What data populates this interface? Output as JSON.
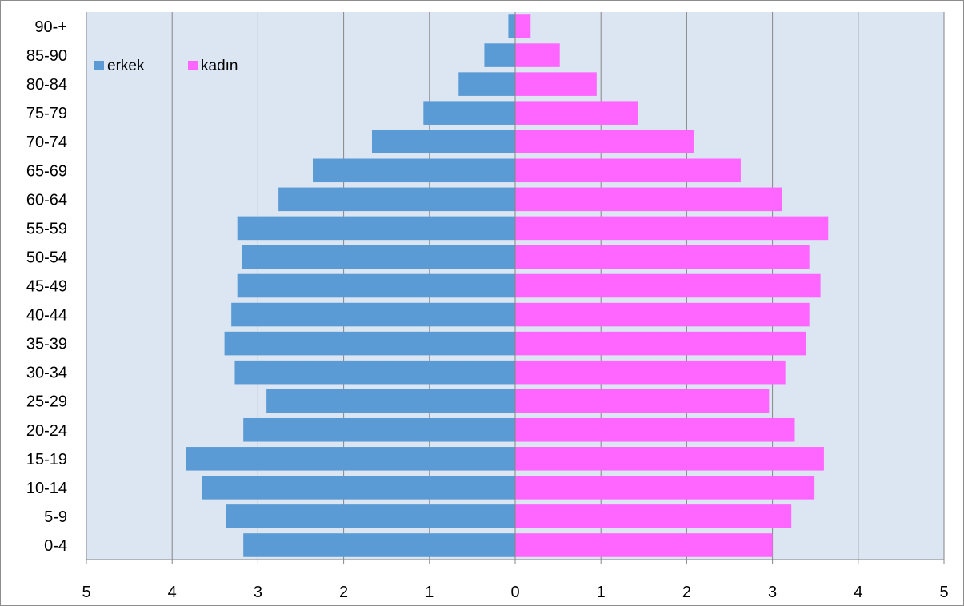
{
  "chart_data": {
    "type": "bar",
    "orientation": "horizontal",
    "categories": [
      "0-4",
      "5-9",
      "10-14",
      "15-19",
      "20-24",
      "25-29",
      "30-34",
      "35-39",
      "40-44",
      "45-49",
      "50-54",
      "55-59",
      "60-64",
      "65-69",
      "70-74",
      "75-79",
      "80-84",
      "85-90",
      "90-+"
    ],
    "series": [
      {
        "name": "erkek",
        "color": "#5b9bd5",
        "values": [
          3.17,
          3.37,
          3.65,
          3.84,
          3.17,
          2.9,
          3.27,
          3.39,
          3.31,
          3.24,
          3.19,
          3.24,
          2.76,
          2.36,
          1.67,
          1.07,
          0.66,
          0.36,
          0.08
        ]
      },
      {
        "name": "kadın",
        "color": "#ff66ff",
        "values": [
          3.0,
          3.22,
          3.49,
          3.6,
          3.26,
          2.96,
          3.15,
          3.39,
          3.43,
          3.56,
          3.43,
          3.65,
          3.11,
          2.63,
          2.08,
          1.43,
          0.95,
          0.52,
          0.18
        ]
      }
    ],
    "xlim": [
      -5,
      5
    ],
    "x_ticks": [
      -5,
      -4,
      -3,
      -2,
      -1,
      0,
      1,
      2,
      3,
      4,
      5
    ],
    "x_tick_labels": [
      "5",
      "4",
      "3",
      "2",
      "1",
      "0",
      "1",
      "2",
      "3",
      "4",
      "5"
    ],
    "title": "",
    "xlabel": "",
    "ylabel": "",
    "grid": "vertical",
    "legend": "top-left",
    "plot_background": "#dce6f2",
    "gridline_color": "#868686"
  }
}
